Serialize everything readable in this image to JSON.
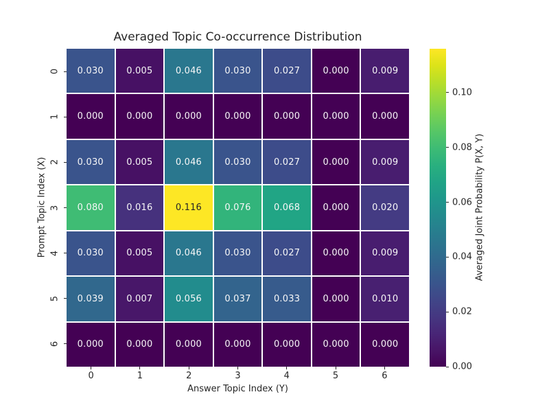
{
  "chart_data": {
    "type": "heatmap",
    "title": "Averaged Topic Co-occurrence Distribution",
    "xlabel": "Answer Topic Index (Y)",
    "ylabel": "Prompt Topic Index (X)",
    "colorbar_label": "Averaged Joint Probability P(X, Y)",
    "x_ticks": [
      "0",
      "1",
      "2",
      "3",
      "4",
      "5",
      "6"
    ],
    "y_ticks": [
      "0",
      "1",
      "2",
      "3",
      "4",
      "5",
      "6"
    ],
    "values": [
      [
        0.03,
        0.005,
        0.046,
        0.03,
        0.027,
        0.0,
        0.009
      ],
      [
        0.0,
        0.0,
        0.0,
        0.0,
        0.0,
        0.0,
        0.0
      ],
      [
        0.03,
        0.005,
        0.046,
        0.03,
        0.027,
        0.0,
        0.009
      ],
      [
        0.08,
        0.016,
        0.116,
        0.076,
        0.068,
        0.0,
        0.02
      ],
      [
        0.03,
        0.005,
        0.046,
        0.03,
        0.027,
        0.0,
        0.009
      ],
      [
        0.039,
        0.007,
        0.056,
        0.037,
        0.033,
        0.0,
        0.01
      ],
      [
        0.0,
        0.0,
        0.0,
        0.0,
        0.0,
        0.0,
        0.0
      ]
    ],
    "value_decimals": 3,
    "vmin": 0.0,
    "vmax": 0.116,
    "colorbar_ticks": [
      0.0,
      0.02,
      0.04,
      0.06,
      0.08,
      0.1
    ],
    "colorbar_tick_decimals": 2,
    "colormap": "viridis",
    "colormap_stops": [
      "#440154",
      "#481567",
      "#482677",
      "#453781",
      "#404688",
      "#39558c",
      "#33638d",
      "#2d708e",
      "#287d8e",
      "#238a8d",
      "#1f978b",
      "#20a386",
      "#29af7f",
      "#3cbb75",
      "#55c667",
      "#73d055",
      "#95d840",
      "#b8de29",
      "#dce319",
      "#fde725"
    ],
    "annotation_color_light": "#f7f7f7",
    "annotation_color_dark": "#262626",
    "grid_line_color": "#ffffff",
    "background_color": "#ffffff",
    "legend_position": "colorbar-right",
    "grid": false
  }
}
